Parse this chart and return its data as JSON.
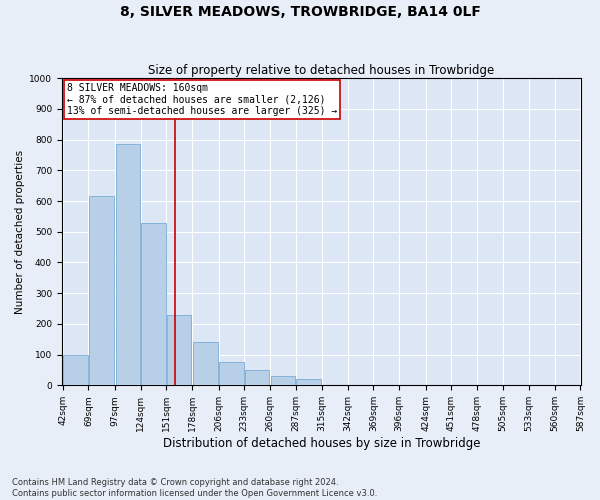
{
  "title": "8, SILVER MEADOWS, TROWBRIDGE, BA14 0LF",
  "subtitle": "Size of property relative to detached houses in Trowbridge",
  "xlabel": "Distribution of detached houses by size in Trowbridge",
  "ylabel": "Number of detached properties",
  "bar_color": "#b8cfe8",
  "bar_edge_color": "#7aadd4",
  "background_color": "#dce6f5",
  "grid_color": "#ffffff",
  "fig_background_color": "#e8eef8",
  "vline_x": 160,
  "vline_color": "#cc0000",
  "annotation_text": "8 SILVER MEADOWS: 160sqm\n← 87% of detached houses are smaller (2,126)\n13% of semi-detached houses are larger (325) →",
  "annotation_box_color": "#ffffff",
  "annotation_box_edge_color": "#cc0000",
  "footnote": "Contains HM Land Registry data © Crown copyright and database right 2024.\nContains public sector information licensed under the Open Government Licence v3.0.",
  "bins": [
    42,
    69,
    97,
    124,
    151,
    178,
    206,
    233,
    260,
    287,
    315,
    342,
    369,
    396,
    424,
    451,
    478,
    505,
    533,
    560,
    587
  ],
  "values": [
    100,
    615,
    785,
    530,
    230,
    140,
    75,
    50,
    30,
    20,
    0,
    0,
    0,
    0,
    0,
    0,
    0,
    0,
    0,
    0
  ],
  "ylim": [
    0,
    1000
  ],
  "yticks": [
    0,
    100,
    200,
    300,
    400,
    500,
    600,
    700,
    800,
    900,
    1000
  ],
  "title_fontsize": 10,
  "subtitle_fontsize": 8.5,
  "xlabel_fontsize": 8.5,
  "ylabel_fontsize": 7.5,
  "tick_fontsize": 6.5,
  "annot_fontsize": 7,
  "footnote_fontsize": 6
}
